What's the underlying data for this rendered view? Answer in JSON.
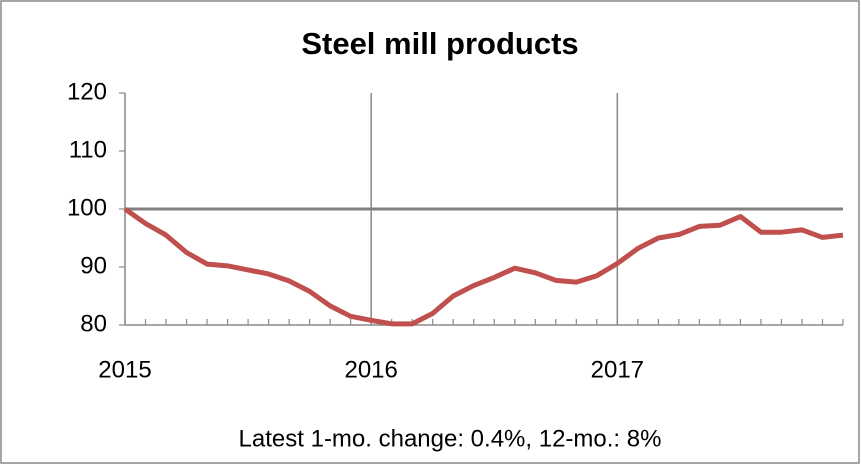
{
  "chart_data": {
    "type": "line",
    "title": "Steel mill products",
    "categories": [
      "2015",
      null,
      null,
      null,
      null,
      null,
      null,
      null,
      null,
      null,
      null,
      null,
      "2016",
      null,
      null,
      null,
      null,
      null,
      null,
      null,
      null,
      null,
      null,
      null,
      "2017",
      null,
      null,
      null,
      null,
      null,
      null,
      null,
      null,
      null,
      null,
      null
    ],
    "series": [
      {
        "name": "Steel mill products",
        "color": "#c0504d",
        "values": [
          100,
          97.5,
          95.5,
          92.5,
          90.5,
          90.2,
          89.5,
          88.8,
          87.6,
          85.8,
          83.3,
          81.5,
          80.8,
          80.2,
          80.2,
          82,
          85,
          86.8,
          88.2,
          89.8,
          89,
          87.7,
          87.4,
          88.5,
          90.6,
          93.2,
          95,
          95.6,
          97,
          97.2,
          98.7,
          96,
          96,
          96.4,
          95.1,
          95.5
        ]
      }
    ],
    "ylim": [
      80,
      120
    ],
    "yticks": [
      80,
      90,
      100,
      110,
      120
    ],
    "reference_line": 100,
    "x_grid": true,
    "y_grid": false,
    "annotation": "Latest 1-mo. change: 0.4%, 12-mo.: 8%"
  }
}
